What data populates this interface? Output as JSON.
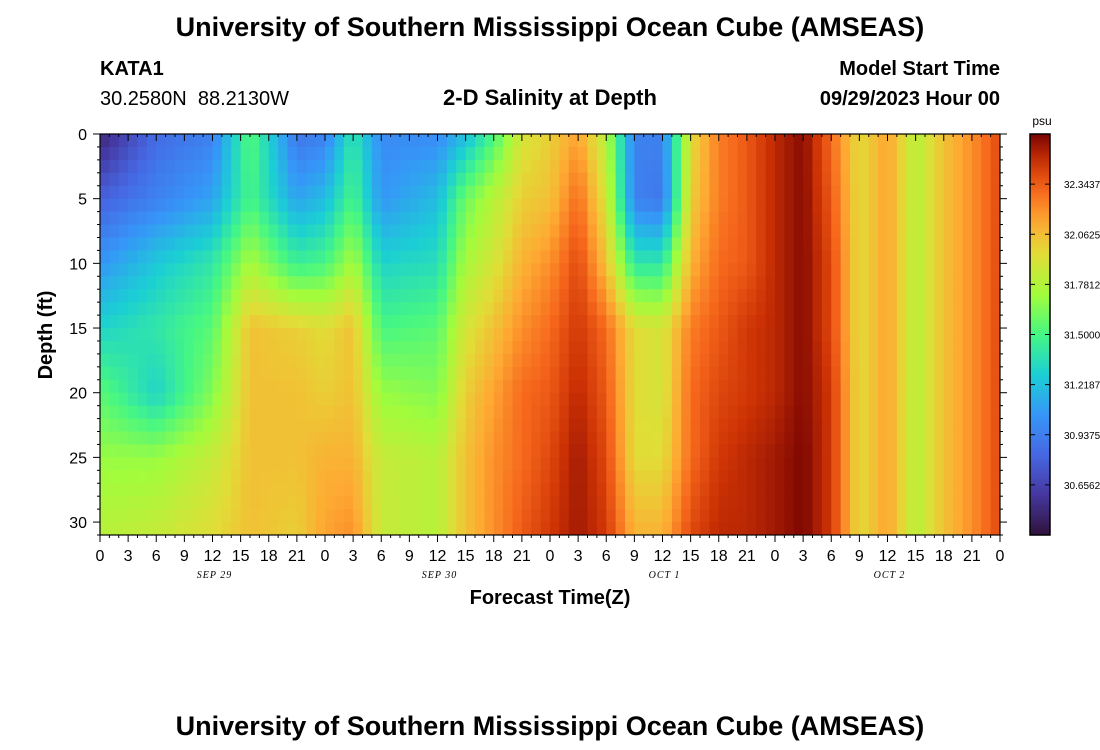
{
  "chart_data": {
    "type": "heatmap",
    "title": "University of Southern Mississippi Ocean Cube (AMSEAS)",
    "station": "KATA1",
    "coordinates": "30.2580N  88.2130W",
    "subtitle": "2-D Salinity at Depth",
    "model_start_label": "Model Start Time",
    "model_start_value": "09/29/2023 Hour 00",
    "xlabel": "Forecast Time(Z)",
    "ylabel": "Depth (ft)",
    "xlim": [
      0,
      96
    ],
    "ylim": [
      0,
      31
    ],
    "x_ticks": [
      0,
      3,
      6,
      9,
      12,
      15,
      18,
      21,
      24,
      27,
      30,
      33,
      36,
      39,
      42,
      45,
      48,
      51,
      54,
      57,
      60,
      63,
      66,
      69,
      72,
      75,
      78,
      81,
      84,
      87,
      90,
      93,
      96
    ],
    "x_tick_labels": [
      "0",
      "3",
      "6",
      "9",
      "12",
      "15",
      "18",
      "21",
      "0",
      "3",
      "6",
      "9",
      "12",
      "15",
      "18",
      "21",
      "0",
      "3",
      "6",
      "9",
      "12",
      "15",
      "18",
      "21",
      "0",
      "3",
      "6",
      "9",
      "12",
      "15",
      "18",
      "21",
      "0"
    ],
    "y_ticks": [
      0,
      5,
      10,
      15,
      20,
      25,
      30
    ],
    "y_tick_labels": [
      "0",
      "5",
      "10",
      "15",
      "20",
      "25",
      "30"
    ],
    "date_labels": [
      {
        "text": "SEP 29",
        "hour": 12
      },
      {
        "text": "SEP 30",
        "hour": 36
      },
      {
        "text": "OCT 1",
        "hour": 60
      },
      {
        "text": "OCT 2",
        "hour": 84
      }
    ],
    "colorbar": {
      "unit": "psu",
      "min": 30.375,
      "max": 32.625,
      "tick_values": [
        32.34375,
        32.0625,
        31.78125,
        31.5,
        31.21875,
        30.9375,
        30.65625
      ],
      "tick_labels": [
        "32.3437",
        "32.0625",
        "31.7812",
        "31.5000",
        "31.2187",
        "30.9375",
        "30.6562"
      ]
    },
    "depths": [
      0,
      5,
      10,
      15,
      20,
      25,
      31
    ],
    "hours": [
      0,
      6,
      12,
      16,
      21,
      24,
      27,
      30,
      36,
      39,
      42,
      45,
      48,
      51,
      54,
      57,
      60,
      63,
      66,
      69,
      72,
      75,
      78,
      81,
      84,
      87,
      90,
      93,
      96
    ],
    "values": [
      [
        30.5,
        30.85,
        30.95,
        31.55,
        30.9,
        30.95,
        31.4,
        31.0,
        31.0,
        31.2,
        31.5,
        31.9,
        32.0,
        32.15,
        31.8,
        30.95,
        30.95,
        31.95,
        32.25,
        32.35,
        32.5,
        32.6,
        32.3,
        31.95,
        32.15,
        31.8,
        32.05,
        32.2,
        32.4
      ],
      [
        30.8,
        30.95,
        31.1,
        31.5,
        31.1,
        31.2,
        31.5,
        31.05,
        31.2,
        31.6,
        31.8,
        32.0,
        32.05,
        32.3,
        31.9,
        30.95,
        30.9,
        32.0,
        32.25,
        32.35,
        32.5,
        32.6,
        32.35,
        31.95,
        32.15,
        31.8,
        32.05,
        32.2,
        32.4
      ],
      [
        31.05,
        31.25,
        31.4,
        31.75,
        31.45,
        31.5,
        31.75,
        31.3,
        31.35,
        31.75,
        31.9,
        32.1,
        32.2,
        32.4,
        32.05,
        31.4,
        31.4,
        32.1,
        32.3,
        32.35,
        32.5,
        32.6,
        32.4,
        31.95,
        32.15,
        31.8,
        32.05,
        32.2,
        32.4
      ],
      [
        31.3,
        31.4,
        31.55,
        32.05,
        32.0,
        31.95,
        32.05,
        31.5,
        31.55,
        31.9,
        32.05,
        32.2,
        32.3,
        32.45,
        32.3,
        31.95,
        31.9,
        32.25,
        32.35,
        32.45,
        32.5,
        32.6,
        32.4,
        31.95,
        32.15,
        31.8,
        32.05,
        32.2,
        32.4
      ],
      [
        31.55,
        31.3,
        31.65,
        32.05,
        32.05,
        32.0,
        32.05,
        31.7,
        31.65,
        32.0,
        32.15,
        32.3,
        32.35,
        32.5,
        32.35,
        31.95,
        31.9,
        32.3,
        32.4,
        32.45,
        32.5,
        32.6,
        32.45,
        31.95,
        32.15,
        31.8,
        32.05,
        32.2,
        32.4
      ],
      [
        31.7,
        31.7,
        31.85,
        32.05,
        32.05,
        32.1,
        32.1,
        31.85,
        31.8,
        32.05,
        32.2,
        32.3,
        32.4,
        32.55,
        32.4,
        31.95,
        31.95,
        32.3,
        32.45,
        32.5,
        32.55,
        32.62,
        32.45,
        31.95,
        32.15,
        31.8,
        32.05,
        32.2,
        32.4
      ],
      [
        31.8,
        31.85,
        31.95,
        32.05,
        32.0,
        32.15,
        32.2,
        31.85,
        31.8,
        32.05,
        32.2,
        32.35,
        32.45,
        32.55,
        32.45,
        32.1,
        32.1,
        32.4,
        32.5,
        32.5,
        32.55,
        32.62,
        32.45,
        31.95,
        32.15,
        31.8,
        32.05,
        32.2,
        32.4
      ]
    ],
    "footer_title": "University of Southern Mississippi Ocean Cube (AMSEAS)"
  }
}
